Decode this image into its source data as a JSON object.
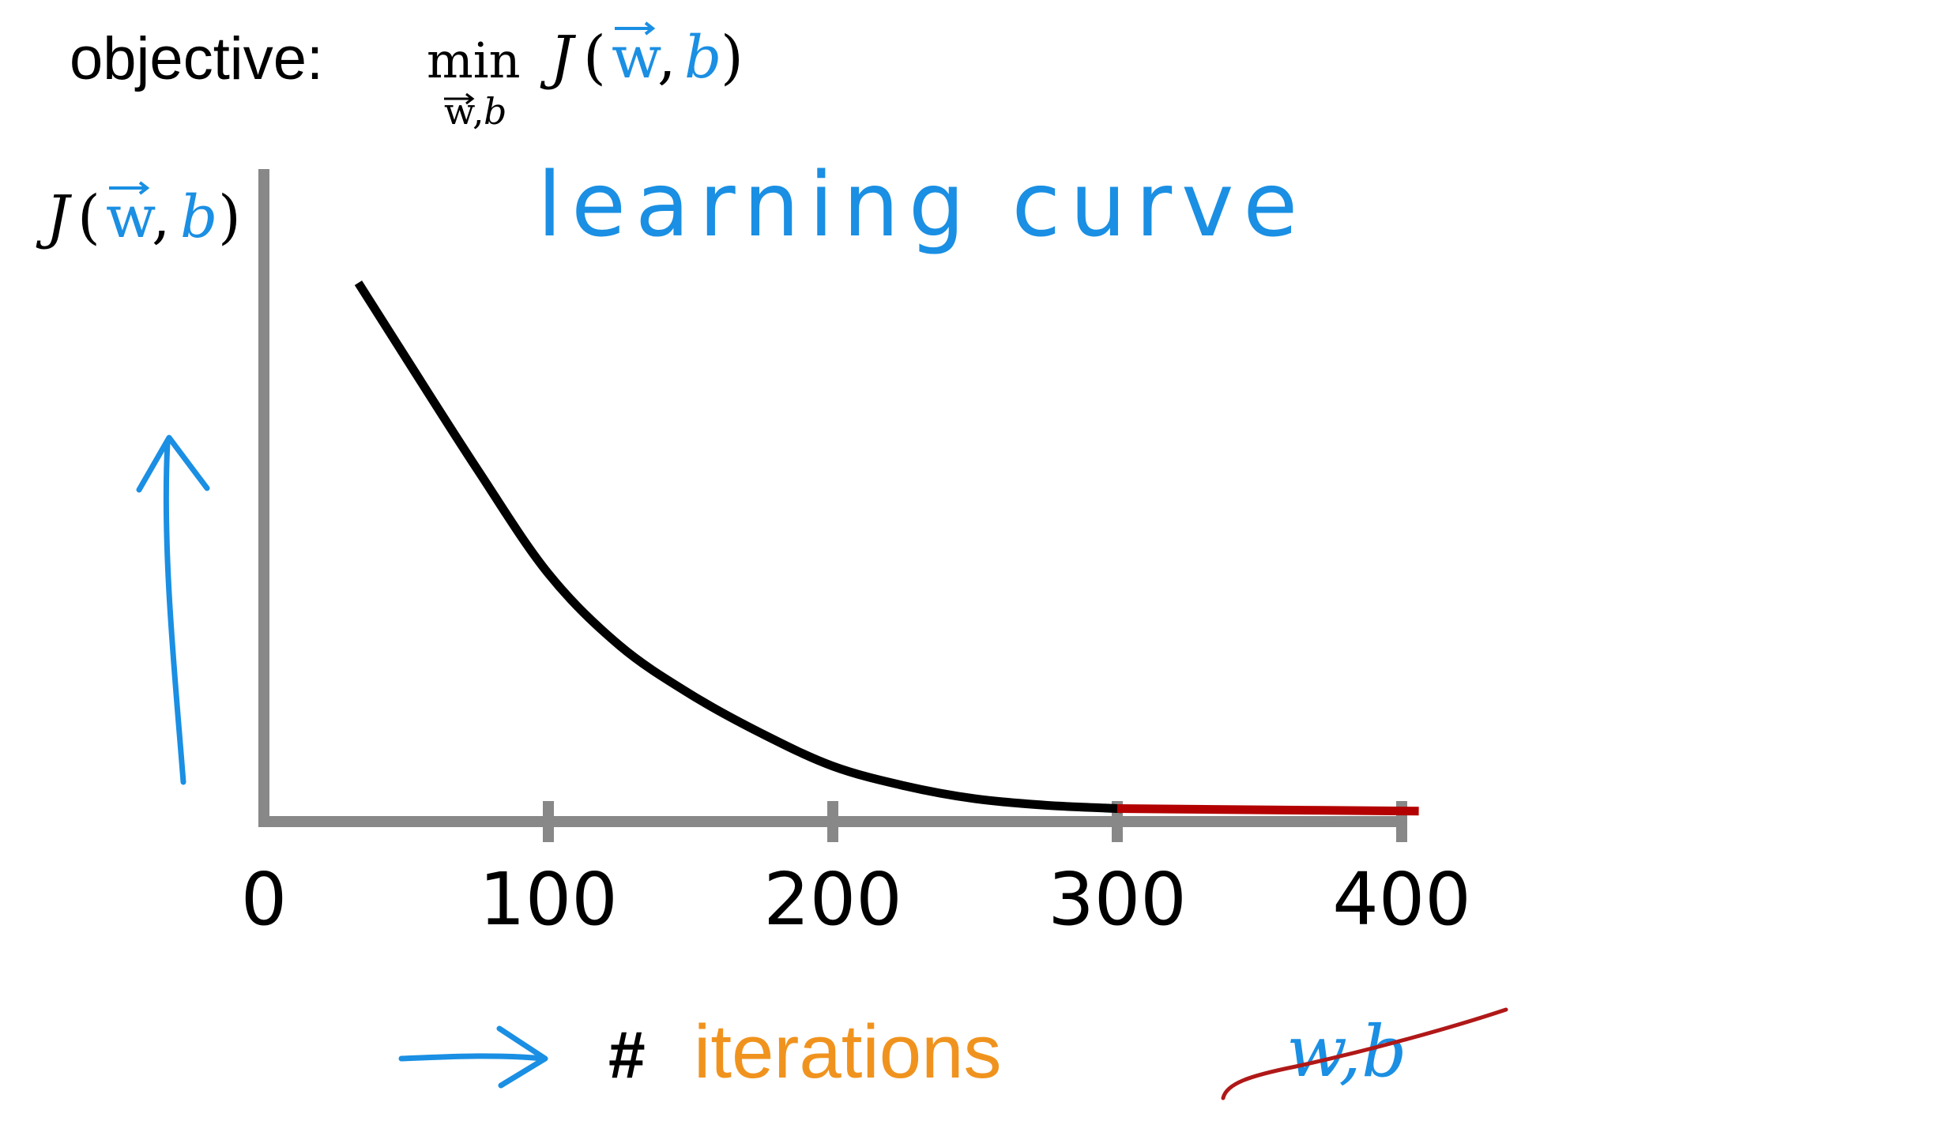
{
  "objective": {
    "label": "objective:",
    "min_operator": "min",
    "min_subscript_w": "w",
    "min_subscript_comma": ",",
    "min_subscript_b": "b",
    "func": "J",
    "open_paren": "(",
    "arg_w": "w",
    "comma": ",",
    "arg_b": "b",
    "close_paren": ")"
  },
  "annotations": {
    "learning_curve": "learning curve",
    "hash": "#",
    "iterations": "iterations",
    "crossed_out": "w,b"
  },
  "colors": {
    "text": "#000000",
    "accent_blue": "#1a8fe3",
    "accent_orange": "#f0931e",
    "axis_gray": "#888888",
    "curve_black": "#000000",
    "curve_red": "#b30000",
    "strike_red": "#b01818"
  },
  "chart_data": {
    "type": "line",
    "title": "learning curve",
    "xlabel": "# iterations",
    "ylabel": "J(w,b)",
    "x_ticks": [
      0,
      100,
      200,
      300,
      400
    ],
    "xlim": [
      0,
      400
    ],
    "ylim": [
      0,
      100
    ],
    "grid": false,
    "legend": "none",
    "y_tick_labels_shown": false,
    "series": [
      {
        "color": "#000000",
        "x": [
          34,
          50,
          75,
          100,
          125,
          150,
          175,
          200,
          225,
          250,
          275,
          300
        ],
        "y": [
          82,
          71,
          54,
          38,
          27,
          19.5,
          13.5,
          8.5,
          5.5,
          3.5,
          2.5,
          2
        ]
      },
      {
        "color": "#b30000",
        "x": [
          300,
          350,
          406
        ],
        "y": [
          2,
          1.8,
          1.6
        ]
      }
    ]
  }
}
